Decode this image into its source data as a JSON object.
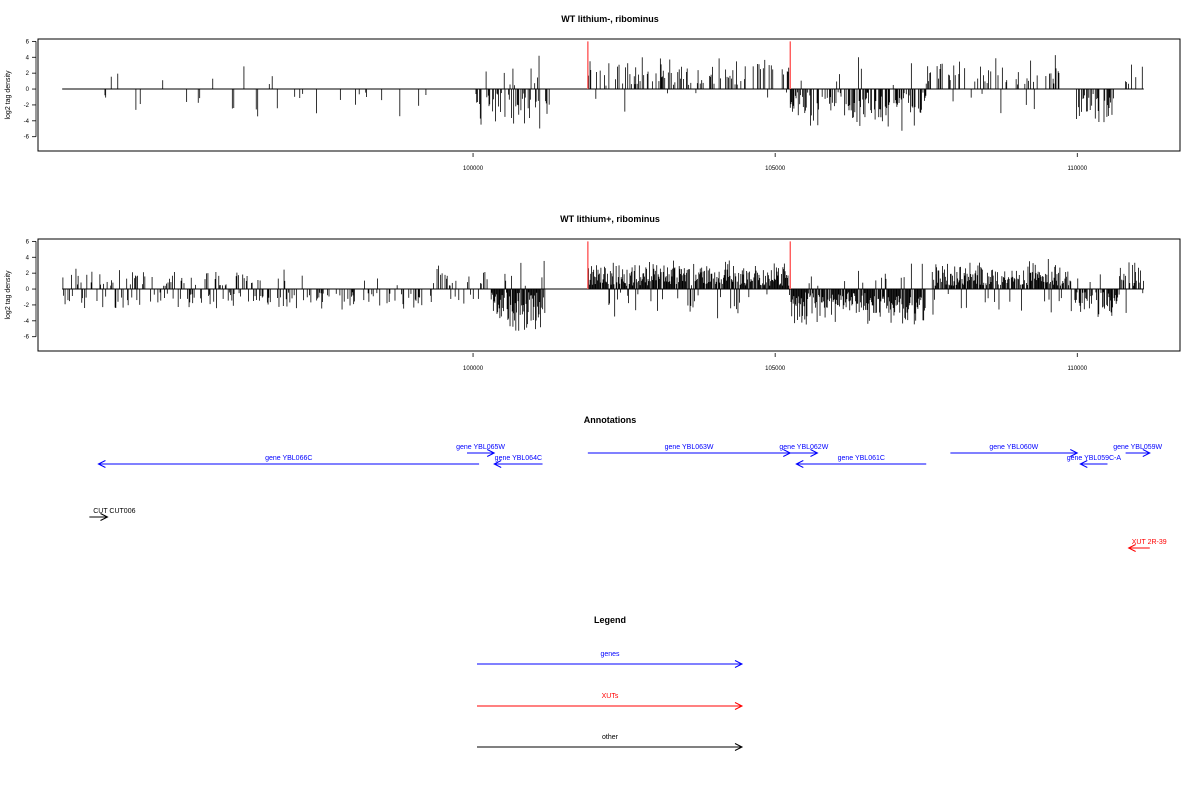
{
  "colors": {
    "gene": "#0000ff",
    "xut": "#ff0000",
    "other": "#000000",
    "marker": "#ff5a5a"
  },
  "chart_data": [
    {
      "type": "bar",
      "title": "WT lithium-, ribominus",
      "ylabel": "log2 tag density",
      "xlim": [
        92800,
        111700
      ],
      "ylim": [
        -7.8,
        6.3
      ],
      "yticks": [
        -6,
        -4,
        -2,
        0,
        2,
        4,
        6
      ],
      "xticks": [
        100000,
        105000,
        110000
      ],
      "data_range": [
        93200,
        111100
      ],
      "markers": [
        101900,
        105250
      ],
      "segments": [
        {
          "from": 93200,
          "to": 94000,
          "density": 0.05,
          "sign": -1,
          "scale": 3
        },
        {
          "from": 94000,
          "to": 97000,
          "density": 0.07,
          "sign": 0,
          "scale": 3
        },
        {
          "from": 97000,
          "to": 100000,
          "density": 0.05,
          "sign": -1,
          "scale": 3
        },
        {
          "from": 100000,
          "to": 101300,
          "density": 0.5,
          "sign": -1,
          "scale": 4.5
        },
        {
          "from": 101900,
          "to": 105250,
          "density": 0.35,
          "sign": 1,
          "scale": 3.5
        },
        {
          "from": 105250,
          "to": 107500,
          "density": 0.6,
          "sign": -1,
          "scale": 4.5
        },
        {
          "from": 107500,
          "to": 109700,
          "density": 0.25,
          "sign": 1,
          "scale": 3.5
        },
        {
          "from": 109950,
          "to": 110600,
          "density": 0.5,
          "sign": -1,
          "scale": 4
        },
        {
          "from": 110800,
          "to": 111100,
          "density": 0.3,
          "sign": 1,
          "scale": 3
        }
      ]
    },
    {
      "type": "bar",
      "title": "WT lithium+, ribominus",
      "ylabel": "log2 tag density",
      "xlim": [
        92800,
        111700
      ],
      "ylim": [
        -7.8,
        6.3
      ],
      "yticks": [
        -6,
        -4,
        -2,
        0,
        2,
        4,
        6
      ],
      "xticks": [
        100000,
        105000,
        110000
      ],
      "data_range": [
        93200,
        111100
      ],
      "markers": [
        101900,
        105250
      ],
      "segments": [
        {
          "from": 93200,
          "to": 96500,
          "density": 0.4,
          "sign": 0,
          "scale": 2
        },
        {
          "from": 96500,
          "to": 99200,
          "density": 0.3,
          "sign": -1,
          "scale": 2
        },
        {
          "from": 99200,
          "to": 100300,
          "density": 0.35,
          "sign": 0,
          "scale": 2.5
        },
        {
          "from": 100300,
          "to": 101200,
          "density": 1.0,
          "sign": -1,
          "scale": 5
        },
        {
          "from": 101900,
          "to": 105250,
          "density": 0.95,
          "sign": 1,
          "scale": 3
        },
        {
          "from": 105250,
          "to": 107500,
          "density": 0.95,
          "sign": -1,
          "scale": 4
        },
        {
          "from": 107600,
          "to": 109900,
          "density": 0.85,
          "sign": 1,
          "scale": 3
        },
        {
          "from": 109900,
          "to": 110700,
          "density": 0.7,
          "sign": -1,
          "scale": 3.5
        },
        {
          "from": 110700,
          "to": 111100,
          "density": 0.5,
          "sign": 1,
          "scale": 3.5
        }
      ]
    }
  ],
  "annotations": {
    "title": "Annotations",
    "features": [
      {
        "label": "gene YBL066C",
        "type": "gene",
        "start": 100100,
        "end": 93800,
        "row": 1
      },
      {
        "label": "gene YBL065W",
        "type": "gene",
        "start": 99900,
        "end": 100350,
        "row": 0
      },
      {
        "label": "gene YBL064C",
        "type": "gene",
        "start": 101150,
        "end": 100350,
        "row": 1
      },
      {
        "label": "gene YBL063W",
        "type": "gene",
        "start": 101900,
        "end": 105250,
        "row": 0
      },
      {
        "label": "gene YBL062W",
        "type": "gene",
        "start": 105250,
        "end": 105700,
        "row": 0
      },
      {
        "label": "gene YBL061C",
        "type": "gene",
        "start": 107500,
        "end": 105350,
        "row": 1
      },
      {
        "label": "gene YBL060W",
        "type": "gene",
        "start": 107900,
        "end": 110000,
        "row": 0
      },
      {
        "label": "gene YBL059C-A",
        "type": "gene",
        "start": 110500,
        "end": 110050,
        "row": 1
      },
      {
        "label": "gene YBL059W",
        "type": "gene",
        "start": 110800,
        "end": 111200,
        "row": 0
      },
      {
        "label": "CUT CUT006",
        "type": "other",
        "start": 93650,
        "end": 93950,
        "row": 2
      },
      {
        "label": "XUT 2R-39",
        "type": "xut",
        "start": 111200,
        "end": 110850,
        "row": 3
      }
    ]
  },
  "legend": {
    "title": "Legend",
    "items": [
      {
        "label": "genes",
        "type": "gene"
      },
      {
        "label": "XUTs",
        "type": "xut"
      },
      {
        "label": "other",
        "type": "other"
      }
    ]
  }
}
